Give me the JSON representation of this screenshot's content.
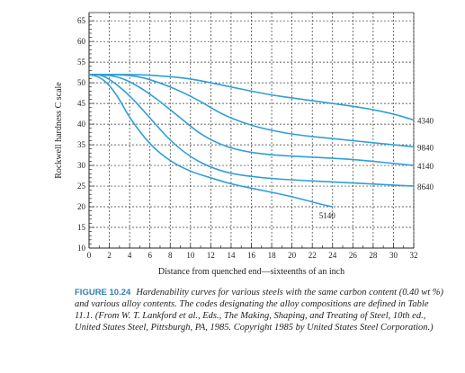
{
  "chart_data": {
    "type": "line",
    "xlabel": "Distance from quenched end—sixteenths of an inch",
    "ylabel": "Rockwell hardness C scale",
    "xlim": [
      0,
      32
    ],
    "ylim": [
      10,
      67
    ],
    "x_ticks": [
      0,
      2,
      4,
      6,
      8,
      10,
      12,
      14,
      16,
      18,
      20,
      22,
      24,
      26,
      28,
      30,
      32
    ],
    "y_ticks": [
      10,
      15,
      20,
      25,
      30,
      35,
      40,
      45,
      50,
      55,
      60,
      65
    ],
    "grid": true,
    "line_color": "#2f9fd8",
    "series": [
      {
        "name": "4340",
        "x": [
          0,
          1,
          3,
          5,
          8,
          10,
          12,
          15,
          18,
          21,
          24,
          27,
          30,
          32
        ],
        "y": [
          52,
          52,
          52,
          52,
          51.5,
          51,
          50,
          48.5,
          47,
          46,
          45,
          44,
          42.5,
          41
        ]
      },
      {
        "name": "9840",
        "x": [
          0,
          1,
          3,
          5,
          7,
          9,
          11,
          13,
          15,
          17,
          20,
          24,
          28,
          32
        ],
        "y": [
          52,
          52,
          52,
          51.5,
          50,
          48,
          45.5,
          42.5,
          40.5,
          39,
          37.5,
          36.5,
          35.5,
          34.5
        ]
      },
      {
        "name": "4140",
        "x": [
          0,
          1,
          3,
          5,
          7,
          9,
          11,
          13,
          15,
          18,
          22,
          26,
          32
        ],
        "y": [
          52,
          52,
          51.5,
          49,
          45.5,
          41.5,
          37.5,
          35,
          33.5,
          32.5,
          32,
          31.5,
          30
        ]
      },
      {
        "name": "8640",
        "x": [
          0,
          1,
          2,
          4,
          6,
          8,
          10,
          12,
          14,
          17,
          20,
          24,
          28,
          32
        ],
        "y": [
          52,
          52,
          51,
          47,
          41.5,
          36,
          32,
          29.5,
          28,
          27,
          26.5,
          26,
          25.5,
          25
        ]
      },
      {
        "name": "5140",
        "x": [
          0,
          1,
          2,
          3,
          4,
          6,
          8,
          10,
          12,
          14,
          17,
          20,
          23,
          24
        ],
        "y": [
          52,
          51.5,
          49.5,
          46,
          41.5,
          35,
          31,
          28.5,
          27,
          25.5,
          24,
          22.5,
          20.5,
          20
        ]
      }
    ]
  },
  "caption": {
    "label": "FIGURE 10.24",
    "text": "Hardenability curves for various steels with the same carbon content (0.40 wt %) and various alloy contents. The codes designating the alloy compositions are defined in Table 11.1. (From W. T. Lankford et al., Eds., The Making, Shaping, and Treating of Steel, 10th ed., United States Steel, Pittsburgh, PA, 1985. Copyright 1985 by United States Steel Corporation.)"
  }
}
